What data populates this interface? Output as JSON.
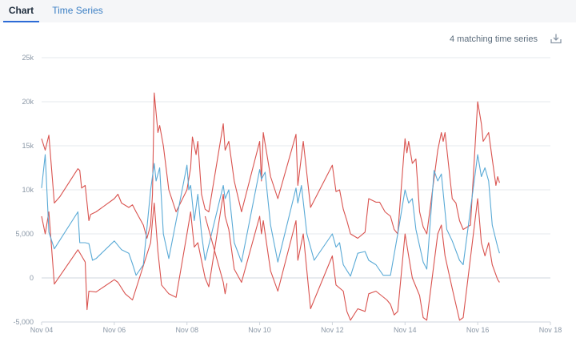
{
  "tabs": [
    {
      "label": "Chart",
      "active": true
    },
    {
      "label": "Time Series",
      "active": false
    }
  ],
  "matching_label": "4 matching time series",
  "icons": {
    "download": "download-icon"
  },
  "colors": {
    "red": "#d9534f",
    "blue": "#5aaad6",
    "grid": "#e6e9ee"
  },
  "chart_data": {
    "type": "line",
    "ylim": [
      -5000,
      25000
    ],
    "y_ticks": [
      {
        "v": 25000,
        "label": "25k"
      },
      {
        "v": 20000,
        "label": "20k"
      },
      {
        "v": 15000,
        "label": "15k"
      },
      {
        "v": 10000,
        "label": "10k"
      },
      {
        "v": 5000,
        "label": "5,000"
      },
      {
        "v": 0,
        "label": "0"
      },
      {
        "v": -5000,
        "label": "-5,000"
      }
    ],
    "xlim": [
      0,
      14
    ],
    "x_ticks": [
      {
        "v": 0,
        "label": "Nov 04"
      },
      {
        "v": 2,
        "label": "Nov 06"
      },
      {
        "v": 4,
        "label": "Nov 08"
      },
      {
        "v": 6,
        "label": "Nov 10"
      },
      {
        "v": 8,
        "label": "Nov 12"
      },
      {
        "v": 10,
        "label": "Nov 14"
      },
      {
        "v": 12,
        "label": "Nov 16"
      },
      {
        "v": 14,
        "label": "Nov 18"
      }
    ],
    "series": [
      {
        "color": "#d9534f",
        "points": [
          [
            0,
            15800
          ],
          [
            0.1,
            14500
          ],
          [
            0.2,
            16200
          ],
          [
            0.35,
            8500
          ],
          [
            0.5,
            9200
          ],
          [
            1.0,
            12400
          ],
          [
            1.05,
            12200
          ],
          [
            1.1,
            10200
          ],
          [
            1.2,
            10500
          ],
          [
            1.3,
            6500
          ],
          [
            1.35,
            7200
          ],
          [
            1.5,
            7500
          ],
          [
            2.0,
            9000
          ],
          [
            2.1,
            9500
          ],
          [
            2.2,
            8500
          ],
          [
            2.4,
            8000
          ],
          [
            2.5,
            8300
          ],
          [
            2.6,
            7500
          ],
          [
            2.8,
            6000
          ],
          [
            2.9,
            4500
          ],
          [
            3.0,
            6000
          ],
          [
            3.05,
            9500
          ],
          [
            3.1,
            21000
          ],
          [
            3.2,
            16500
          ],
          [
            3.25,
            17300
          ],
          [
            3.35,
            15000
          ],
          [
            3.5,
            10000
          ],
          [
            3.7,
            7500
          ],
          [
            4.0,
            10000
          ],
          [
            4.1,
            12500
          ],
          [
            4.15,
            16000
          ],
          [
            4.25,
            14000
          ],
          [
            4.3,
            15500
          ],
          [
            4.4,
            9500
          ],
          [
            4.5,
            7800
          ],
          [
            4.6,
            7500
          ],
          [
            5.0,
            17500
          ],
          [
            5.05,
            14500
          ],
          [
            5.15,
            15500
          ],
          [
            5.3,
            11000
          ],
          [
            5.5,
            7500
          ],
          [
            6.0,
            15500
          ],
          [
            6.05,
            11000
          ],
          [
            6.1,
            16500
          ],
          [
            6.3,
            11500
          ],
          [
            6.5,
            9000
          ],
          [
            7.0,
            16300
          ],
          [
            7.05,
            10500
          ],
          [
            7.2,
            15500
          ],
          [
            7.4,
            8000
          ],
          [
            8.0,
            12800
          ],
          [
            8.1,
            9800
          ],
          [
            8.2,
            10000
          ],
          [
            8.3,
            7800
          ],
          [
            8.4,
            6500
          ],
          [
            8.5,
            5000
          ],
          [
            8.7,
            4500
          ],
          [
            8.9,
            5200
          ],
          [
            9.0,
            9000
          ],
          [
            9.2,
            8600
          ],
          [
            9.3,
            8600
          ],
          [
            9.45,
            7500
          ],
          [
            9.6,
            7000
          ],
          [
            9.7,
            5500
          ],
          [
            9.8,
            5000
          ],
          [
            10.0,
            15800
          ],
          [
            10.05,
            14200
          ],
          [
            10.1,
            15500
          ],
          [
            10.2,
            13000
          ],
          [
            10.3,
            13500
          ],
          [
            10.4,
            7500
          ],
          [
            10.5,
            5800
          ],
          [
            10.6,
            5000
          ],
          [
            10.9,
            14500
          ],
          [
            11.0,
            16500
          ],
          [
            11.05,
            15500
          ],
          [
            11.1,
            16500
          ],
          [
            11.3,
            9000
          ],
          [
            11.4,
            8500
          ],
          [
            11.5,
            6500
          ],
          [
            11.6,
            5500
          ],
          [
            11.8,
            6000
          ],
          [
            12.0,
            20000
          ],
          [
            12.1,
            17500
          ],
          [
            12.15,
            15500
          ],
          [
            12.3,
            16500
          ],
          [
            12.4,
            13500
          ],
          [
            12.5,
            10500
          ],
          [
            12.55,
            11500
          ],
          [
            12.6,
            10800
          ]
        ]
      },
      {
        "color": "#d9534f",
        "points": [
          [
            0,
            7000
          ],
          [
            0.1,
            5000
          ],
          [
            0.2,
            7500
          ],
          [
            0.35,
            -700
          ],
          [
            1.0,
            3200
          ],
          [
            1.1,
            2500
          ],
          [
            1.2,
            1800
          ],
          [
            1.25,
            -3600
          ],
          [
            1.3,
            -1500
          ],
          [
            1.5,
            -1600
          ],
          [
            2.0,
            -200
          ],
          [
            2.1,
            -500
          ],
          [
            2.3,
            -1800
          ],
          [
            2.5,
            -2500
          ],
          [
            3.0,
            4000
          ],
          [
            3.05,
            6500
          ],
          [
            3.1,
            8500
          ],
          [
            3.2,
            3000
          ],
          [
            3.3,
            -800
          ],
          [
            3.5,
            -1800
          ],
          [
            3.7,
            -2200
          ],
          [
            4.0,
            5000
          ],
          [
            4.1,
            7500
          ],
          [
            4.2,
            3500
          ],
          [
            4.3,
            4000
          ],
          [
            4.5,
            0
          ],
          [
            4.6,
            -1000
          ],
          [
            5.0,
            9500
          ],
          [
            5.05,
            7000
          ],
          [
            5.15,
            5500
          ],
          [
            5.3,
            1000
          ],
          [
            5.5,
            -500
          ],
          [
            6.0,
            7000
          ],
          [
            6.05,
            5000
          ],
          [
            6.1,
            6500
          ],
          [
            6.3,
            800
          ],
          [
            6.5,
            -1500
          ],
          [
            7.0,
            6500
          ],
          [
            7.05,
            2000
          ],
          [
            7.2,
            5000
          ],
          [
            7.4,
            -3500
          ],
          [
            8.0,
            2500
          ],
          [
            8.1,
            -800
          ],
          [
            8.3,
            -1500
          ],
          [
            8.4,
            -3800
          ],
          [
            8.5,
            -4800
          ],
          [
            8.7,
            -3500
          ],
          [
            8.9,
            -3800
          ],
          [
            9.0,
            -1800
          ],
          [
            9.2,
            -1500
          ],
          [
            9.5,
            -2500
          ],
          [
            9.6,
            -3000
          ],
          [
            9.7,
            -4200
          ],
          [
            9.8,
            -3800
          ],
          [
            10.0,
            5000
          ],
          [
            10.1,
            2500
          ],
          [
            10.2,
            0
          ],
          [
            10.4,
            -2000
          ],
          [
            10.5,
            -4500
          ],
          [
            10.6,
            -4800
          ],
          [
            10.9,
            5000
          ],
          [
            11.0,
            6000
          ],
          [
            11.1,
            2500
          ],
          [
            11.3,
            -1200
          ],
          [
            11.5,
            -4800
          ],
          [
            11.6,
            -4500
          ],
          [
            12.0,
            9000
          ],
          [
            12.1,
            4000
          ],
          [
            12.2,
            2500
          ],
          [
            12.3,
            4000
          ],
          [
            12.4,
            1500
          ],
          [
            12.55,
            -200
          ],
          [
            12.6,
            -500
          ]
        ]
      },
      {
        "color": "#5aaad6",
        "points": [
          [
            0,
            10200
          ],
          [
            0.1,
            14000
          ],
          [
            0.2,
            5200
          ],
          [
            0.35,
            3300
          ],
          [
            1.0,
            7500
          ],
          [
            1.05,
            4000
          ],
          [
            1.2,
            4000
          ],
          [
            1.3,
            3900
          ],
          [
            1.4,
            2000
          ],
          [
            1.5,
            2200
          ],
          [
            2.0,
            4200
          ],
          [
            2.2,
            3200
          ],
          [
            2.4,
            2800
          ],
          [
            2.5,
            1600
          ],
          [
            2.6,
            300
          ],
          [
            2.8,
            1500
          ],
          [
            3.0,
            10000
          ],
          [
            3.1,
            13000
          ],
          [
            3.15,
            11000
          ],
          [
            3.25,
            12500
          ],
          [
            3.35,
            5000
          ],
          [
            3.5,
            2200
          ],
          [
            4.0,
            12800
          ],
          [
            4.05,
            10000
          ],
          [
            4.1,
            10500
          ],
          [
            4.2,
            6500
          ],
          [
            4.3,
            9500
          ],
          [
            4.4,
            5000
          ],
          [
            4.5,
            2000
          ],
          [
            5.0,
            10500
          ],
          [
            5.05,
            9000
          ],
          [
            5.15,
            10000
          ],
          [
            5.3,
            4000
          ],
          [
            5.5,
            1800
          ],
          [
            6.0,
            12300
          ],
          [
            6.05,
            11200
          ],
          [
            6.15,
            12000
          ],
          [
            6.3,
            6000
          ],
          [
            6.5,
            1800
          ],
          [
            7.0,
            10200
          ],
          [
            7.05,
            8500
          ],
          [
            7.15,
            10500
          ],
          [
            7.3,
            5000
          ],
          [
            7.5,
            2000
          ],
          [
            8.0,
            5000
          ],
          [
            8.1,
            3500
          ],
          [
            8.2,
            4000
          ],
          [
            8.3,
            1500
          ],
          [
            8.5,
            200
          ],
          [
            8.7,
            2800
          ],
          [
            8.9,
            3000
          ],
          [
            9.0,
            2000
          ],
          [
            9.2,
            1500
          ],
          [
            9.4,
            300
          ],
          [
            9.6,
            300
          ],
          [
            9.8,
            5000
          ],
          [
            10.0,
            10000
          ],
          [
            10.1,
            8500
          ],
          [
            10.2,
            9000
          ],
          [
            10.3,
            5500
          ],
          [
            10.5,
            1800
          ],
          [
            10.6,
            1000
          ],
          [
            10.8,
            12200
          ],
          [
            10.9,
            11000
          ],
          [
            11.0,
            11800
          ],
          [
            11.15,
            5500
          ],
          [
            11.3,
            4200
          ],
          [
            11.5,
            2000
          ],
          [
            11.6,
            1500
          ],
          [
            12.0,
            14000
          ],
          [
            12.1,
            11500
          ],
          [
            12.2,
            12500
          ],
          [
            12.3,
            11000
          ],
          [
            12.4,
            6000
          ],
          [
            12.55,
            3500
          ],
          [
            12.6,
            2800
          ]
        ]
      },
      {
        "color": "#d9534f",
        "points": [
          [
            4.5,
            7000
          ],
          [
            5.0,
            -500
          ],
          [
            5.05,
            -1800
          ],
          [
            5.1,
            -600
          ]
        ]
      }
    ]
  }
}
